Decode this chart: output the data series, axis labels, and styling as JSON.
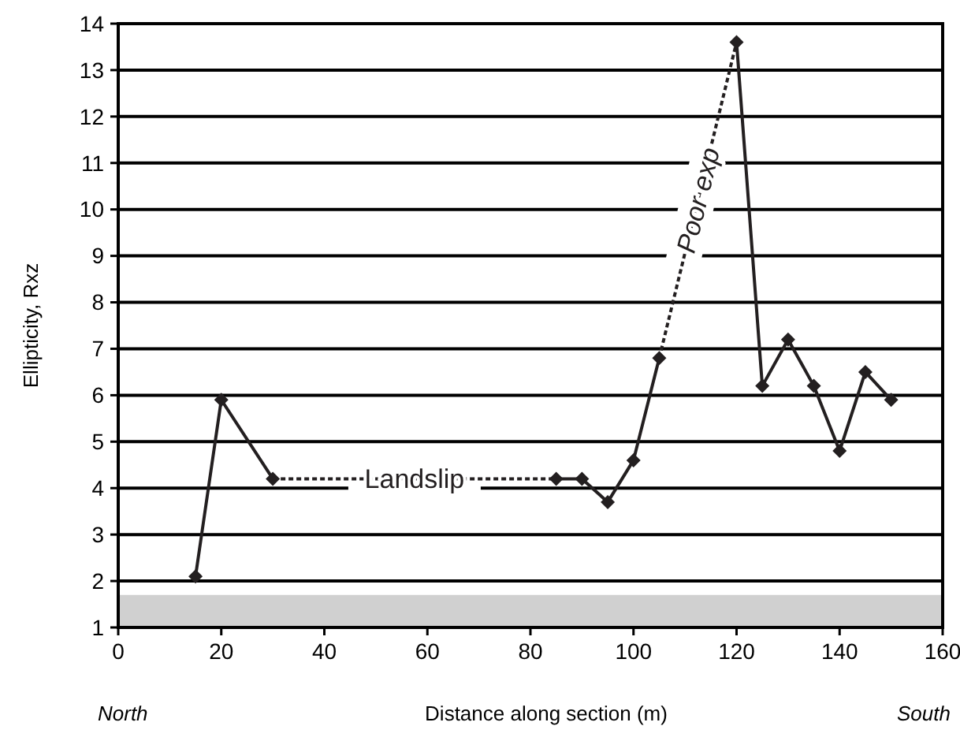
{
  "chart_data": {
    "type": "line",
    "xlabel": "Distance along section (m)",
    "ylabel": "Ellipticity, Rxz",
    "series": [
      {
        "color": "#231f20",
        "marker": "diamond",
        "line_style": "solid",
        "x": [
          15,
          20,
          30
        ],
        "values": [
          2.1,
          5.9,
          4.2
        ]
      },
      {
        "color": "#231f20",
        "marker": "diamond",
        "line_style": "solid",
        "x": [
          85,
          90,
          95,
          100,
          105
        ],
        "values": [
          4.2,
          4.2,
          3.7,
          4.6,
          6.8
        ]
      },
      {
        "color": "#231f20",
        "marker": "diamond",
        "line_style": "solid",
        "x": [
          120,
          125,
          130,
          135,
          140,
          145,
          150
        ],
        "values": [
          13.6,
          6.2,
          7.2,
          6.2,
          4.8,
          6.5,
          5.9
        ]
      },
      {
        "color": "#231f20",
        "marker": "none",
        "line_style": "dashed",
        "x": [
          30,
          85
        ],
        "values": [
          4.2,
          4.2
        ]
      },
      {
        "color": "#231f20",
        "marker": "none",
        "line_style": "dashed",
        "x": [
          105,
          120
        ],
        "values": [
          6.8,
          13.6
        ]
      }
    ],
    "xlim": [
      0,
      160
    ],
    "xticks": [
      0,
      20,
      40,
      60,
      80,
      100,
      120,
      140,
      160
    ],
    "ylim": [
      1,
      14
    ],
    "yticks": [
      1,
      2,
      3,
      4,
      5,
      6,
      7,
      8,
      9,
      10,
      11,
      12,
      13,
      14
    ],
    "grid": "y",
    "bands": [
      {
        "axis": "y",
        "from": 1,
        "to": 1.7,
        "color": "#d0d0d0"
      }
    ],
    "annotations": [
      {
        "text": "Landslip",
        "x": 57.5,
        "y": 4.2
      },
      {
        "text": "Poor exp",
        "x": 112.5,
        "y": 10.2
      },
      "North",
      "South"
    ]
  }
}
